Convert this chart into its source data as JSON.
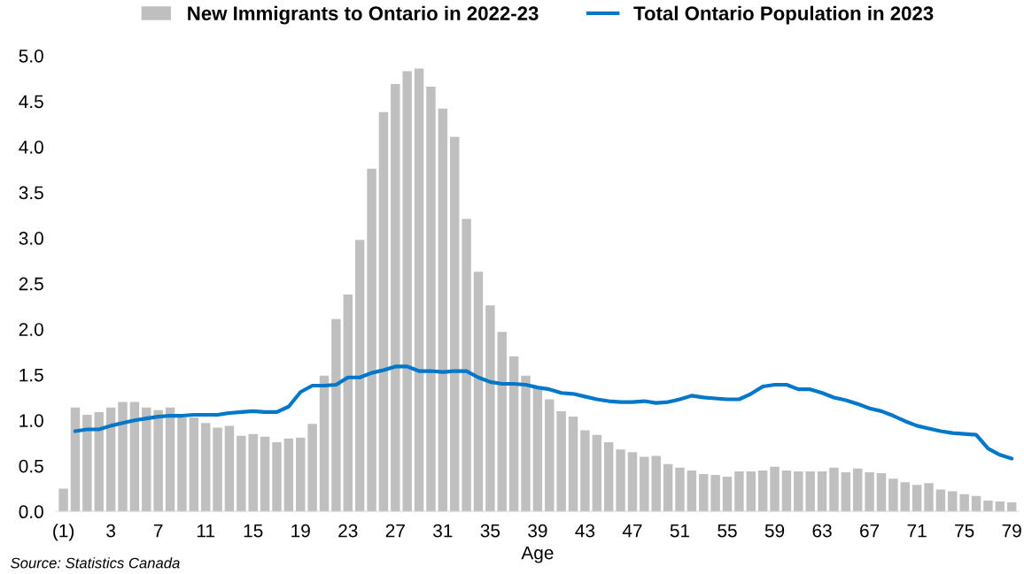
{
  "chart_data": {
    "type": "bar",
    "xlabel": "Age",
    "categories": [
      "(1)",
      null,
      null,
      null,
      "3",
      null,
      null,
      null,
      "7",
      null,
      null,
      null,
      "11",
      null,
      null,
      null,
      "15",
      null,
      null,
      null,
      "19",
      null,
      null,
      null,
      "23",
      null,
      null,
      null,
      "27",
      null,
      null,
      null,
      "31",
      null,
      null,
      null,
      "35",
      null,
      null,
      null,
      "39",
      null,
      null,
      null,
      "43",
      null,
      null,
      null,
      "47",
      null,
      null,
      null,
      "51",
      null,
      null,
      null,
      "55",
      null,
      null,
      null,
      "59",
      null,
      null,
      null,
      "63",
      null,
      null,
      null,
      "67",
      null,
      null,
      null,
      "71",
      null,
      null,
      null,
      "75",
      null,
      null,
      null,
      "79"
    ],
    "series": [
      {
        "name": "New Immigrants to Ontario in 2022-23",
        "color": "#bfbfbf",
        "values": [
          0.25,
          1.14,
          1.06,
          1.09,
          1.14,
          1.2,
          1.2,
          1.14,
          1.11,
          1.14,
          1.03,
          1.03,
          0.97,
          0.92,
          0.94,
          0.83,
          0.85,
          0.82,
          0.76,
          0.8,
          0.81,
          0.96,
          1.49,
          2.11,
          2.38,
          2.98,
          3.76,
          4.38,
          4.69,
          4.83,
          4.86,
          4.66,
          4.42,
          4.11,
          3.21,
          2.63,
          2.26,
          1.97,
          1.7,
          1.49,
          1.36,
          1.23,
          1.1,
          1.04,
          0.89,
          0.84,
          0.76,
          0.68,
          0.65,
          0.6,
          0.61,
          0.52,
          0.48,
          0.45,
          0.41,
          0.4,
          0.38,
          0.44,
          0.44,
          0.45,
          0.49,
          0.45,
          0.44,
          0.44,
          0.44,
          0.48,
          0.43,
          0.47,
          0.43,
          0.42,
          0.36,
          0.32,
          0.29,
          0.31,
          0.24,
          0.22,
          0.19,
          0.17,
          0.12,
          0.11,
          0.1
        ]
      },
      {
        "name": "Total Ontario Population in 2023",
        "type": "line",
        "color": "#0077c8",
        "values": [
          null,
          0.88,
          0.9,
          0.9,
          0.94,
          0.97,
          1.0,
          1.02,
          1.04,
          1.05,
          1.05,
          1.06,
          1.06,
          1.06,
          1.08,
          1.09,
          1.1,
          1.09,
          1.09,
          1.15,
          1.31,
          1.38,
          1.38,
          1.39,
          1.47,
          1.47,
          1.52,
          1.55,
          1.59,
          1.59,
          1.54,
          1.54,
          1.53,
          1.54,
          1.54,
          1.47,
          1.42,
          1.4,
          1.4,
          1.39,
          1.36,
          1.34,
          1.3,
          1.29,
          1.26,
          1.23,
          1.21,
          1.2,
          1.2,
          1.21,
          1.19,
          1.2,
          1.23,
          1.27,
          1.25,
          1.24,
          1.23,
          1.23,
          1.29,
          1.37,
          1.39,
          1.39,
          1.34,
          1.34,
          1.3,
          1.25,
          1.22,
          1.18,
          1.13,
          1.1,
          1.05,
          0.99,
          0.94,
          0.91,
          0.88,
          0.86,
          0.85,
          0.84,
          0.69,
          0.62,
          0.58
        ]
      }
    ],
    "ylim": [
      0,
      5
    ],
    "yticks": [
      {
        "value": 0,
        "label": "0.0"
      },
      {
        "value": 0.5,
        "label": "0.5"
      },
      {
        "value": 1,
        "label": "1.0"
      },
      {
        "value": 1.5,
        "label": "1.5"
      },
      {
        "value": 2,
        "label": "2.0"
      },
      {
        "value": 2.5,
        "label": "2.5"
      },
      {
        "value": 3,
        "label": "3.0"
      },
      {
        "value": 3.5,
        "label": "3.5"
      },
      {
        "value": 4,
        "label": "4.0"
      },
      {
        "value": 4.5,
        "label": "4.5"
      },
      {
        "value": 5,
        "label": "5.0"
      }
    ],
    "grid": false,
    "legend": "top",
    "annotations": [
      "Source: Statistics Canada"
    ]
  }
}
